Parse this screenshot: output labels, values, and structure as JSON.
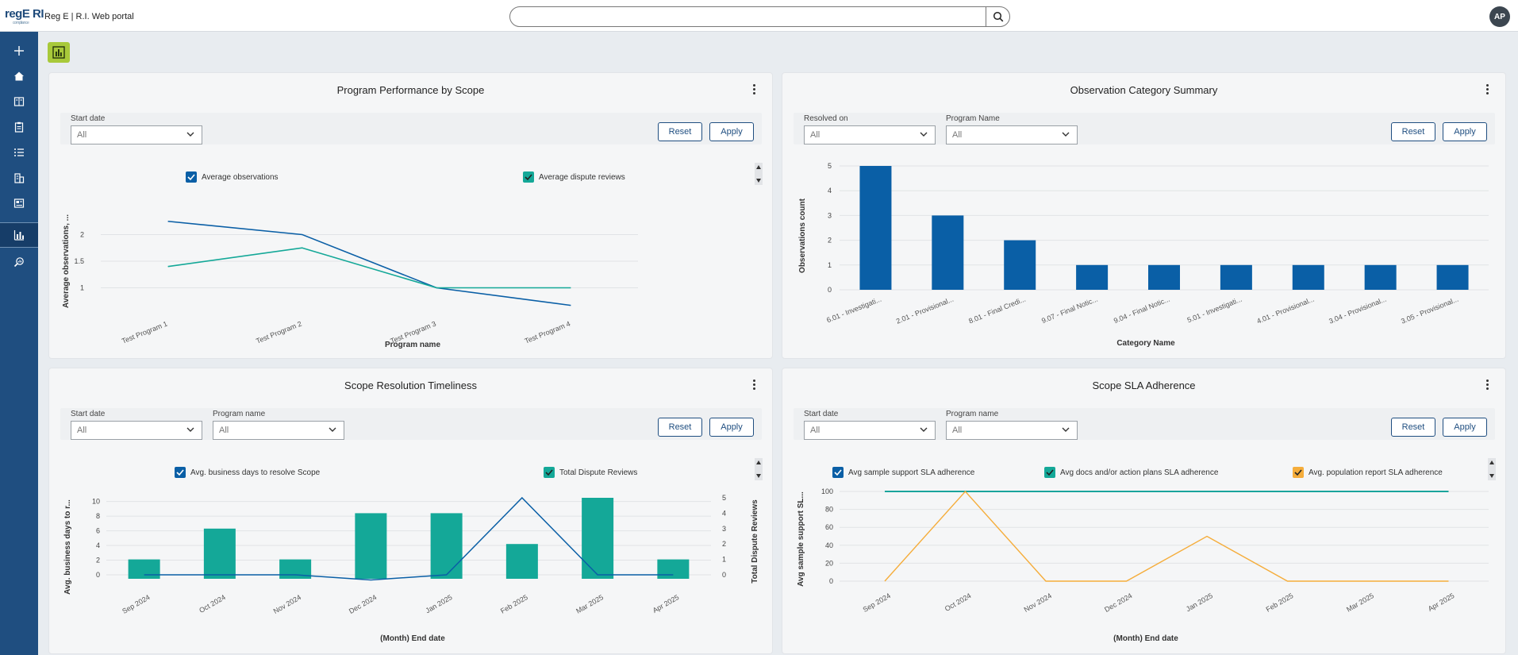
{
  "header": {
    "logo": "regE RI",
    "logo_sub": "compliance",
    "app_title": "Reg E | R.I.  Web portal",
    "search_placeholder": "",
    "avatar": "AP"
  },
  "sidebar": {
    "items": [
      {
        "icon": "plus-icon"
      },
      {
        "icon": "home-icon"
      },
      {
        "icon": "book-icon"
      },
      {
        "icon": "clipboard-icon"
      },
      {
        "icon": "list-icon"
      },
      {
        "icon": "building-icon"
      },
      {
        "icon": "report-icon"
      },
      {
        "icon": "bar-chart-icon",
        "active": true
      },
      {
        "icon": "search-analytics-icon"
      }
    ]
  },
  "colors": {
    "blue": "#0a5fa6",
    "teal": "#14a898",
    "orange": "#f5ad3b",
    "sidebar": "#1f4e80",
    "accent": "#a8c93a"
  },
  "common": {
    "reset": "Reset",
    "apply": "Apply",
    "all": "All"
  },
  "panels": [
    {
      "title": "Program Performance by Scope",
      "filters": [
        {
          "label": "Start date",
          "value": "All"
        }
      ],
      "legend": [
        "Average observations",
        "Average dispute reviews"
      ],
      "chart_data": {
        "type": "line",
        "categories": [
          "Test Program 1",
          "Test Program 2",
          "Test Program 3",
          "Test Program 4"
        ],
        "series": [
          {
            "name": "Average observations",
            "values": [
              2.25,
              2.0,
              1.0,
              0.67
            ]
          },
          {
            "name": "Average dispute reviews",
            "values": [
              1.4,
              1.75,
              1.0,
              1.0
            ]
          }
        ],
        "ylabel": "Average observations, ...",
        "xlabel": "Program name",
        "yticks": [
          "2",
          "1.5",
          "1"
        ],
        "ylim": [
          0.5,
          2.5
        ]
      }
    },
    {
      "title": "Observation Category Summary",
      "filters": [
        {
          "label": "Resolved on",
          "value": "All"
        },
        {
          "label": "Program Name",
          "value": "All"
        }
      ],
      "chart_data": {
        "type": "bar",
        "categories": [
          "6.01 - Investigati...",
          "2.01 - Provisional...",
          "8.01 - Final Credi...",
          "9.07 - Final Notic...",
          "9.04 - Final Notic...",
          "5.01 - Investigati...",
          "4.01 - Provisional...",
          "3.04 - Provisional...",
          "3.05 - Provisional..."
        ],
        "values": [
          5,
          3,
          2,
          1,
          1,
          1,
          1,
          1,
          1
        ],
        "ylabel": "Observations count",
        "xlabel": "Category Name",
        "yticks": [
          "5",
          "4",
          "3",
          "2",
          "1",
          "0"
        ],
        "ylim": [
          0,
          5
        ]
      }
    },
    {
      "title": "Scope Resolution Timeliness",
      "filters": [
        {
          "label": "Start date",
          "value": "All"
        },
        {
          "label": "Program name",
          "value": "All"
        }
      ],
      "legend": [
        "Avg. business days to resolve Scope",
        "Total Dispute Reviews"
      ],
      "chart_data": {
        "type": "bar",
        "categories": [
          "Sep 2024",
          "Oct 2024",
          "Nov 2024",
          "Dec 2024",
          "Jan 2025",
          "Feb 2025",
          "Mar 2025",
          "Apr 2025"
        ],
        "series": [
          {
            "name": "Total Dispute Reviews",
            "type": "bar",
            "values": [
              1,
              3,
              1,
              4,
              4,
              2,
              5,
              1
            ]
          },
          {
            "name": "Avg. business days to resolve Scope",
            "type": "line",
            "values": [
              0,
              0,
              0,
              -0.7,
              0,
              10.5,
              0,
              0
            ]
          }
        ],
        "ylabel": "Avg. business days to r...",
        "y2label": "Total Dispute Reviews",
        "xlabel": "(Month) End date",
        "yticks": [
          "10",
          "8",
          "6",
          "4",
          "2",
          "0"
        ],
        "y2ticks": [
          "5",
          "4",
          "3",
          "2",
          "1",
          "0"
        ]
      }
    },
    {
      "title": "Scope SLA Adherence",
      "filters": [
        {
          "label": "Start date",
          "value": "All"
        },
        {
          "label": "Program name",
          "value": "All"
        }
      ],
      "legend": [
        "Avg sample support SLA adherence",
        "Avg docs and/or action plans SLA adherence",
        "Avg. population report SLA adherence"
      ],
      "chart_data": {
        "type": "line",
        "categories": [
          "Sep 2024",
          "Oct 2024",
          "Nov 2024",
          "Dec 2024",
          "Jan 2025",
          "Feb 2025",
          "Mar 2025",
          "Apr 2025"
        ],
        "series": [
          {
            "name": "Avg sample support SLA adherence",
            "values": [
              100,
              100,
              100,
              100,
              100,
              100,
              100,
              100
            ]
          },
          {
            "name": "Avg docs and/or action plans SLA adherence",
            "values": [
              100,
              100,
              100,
              100,
              100,
              100,
              100,
              100
            ]
          },
          {
            "name": "Avg. population report SLA adherence",
            "values": [
              0,
              100,
              0,
              0,
              50,
              0,
              0,
              0
            ]
          }
        ],
        "ylabel": "Avg sample support SL...",
        "xlabel": "(Month) End date",
        "yticks": [
          "100",
          "80",
          "60",
          "40",
          "20",
          "0"
        ],
        "ylim": [
          0,
          100
        ]
      }
    }
  ]
}
